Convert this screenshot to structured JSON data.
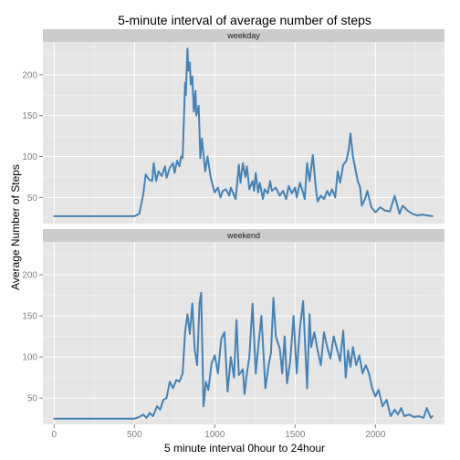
{
  "chart_data": {
    "type": "line",
    "title": "5-minute interval of average number of steps",
    "xlabel": "5 minute interval 0hour to 24hour",
    "ylabel": "Average Number of Steps",
    "xlim": [
      -70,
      2430
    ],
    "ylim": [
      18,
      240
    ],
    "x_ticks": [
      0,
      500,
      1000,
      1500,
      2000
    ],
    "y_ticks": [
      50,
      100,
      150,
      200
    ],
    "grid": true,
    "line_color": "#4682b4",
    "panels": [
      {
        "name": "weekday",
        "series": [
          {
            "x": [
              0,
              100,
              200,
              300,
              400,
              500,
              530,
              555,
              570,
              590,
              610,
              620,
              635,
              650,
              670,
              690,
              700,
              720,
              740,
              750,
              765,
              780,
              790,
              800,
              815,
              820,
              830,
              835,
              845,
              850,
              860,
              870,
              880,
              885,
              900,
              910,
              920,
              940,
              955,
              975,
              1000,
              1020,
              1035,
              1050,
              1070,
              1090,
              1100,
              1130,
              1150,
              1160,
              1175,
              1190,
              1200,
              1215,
              1235,
              1245,
              1255,
              1270,
              1280,
              1300,
              1310,
              1330,
              1345,
              1355,
              1380,
              1405,
              1425,
              1445,
              1460,
              1480,
              1500,
              1510,
              1530,
              1550,
              1560,
              1575,
              1590,
              1610,
              1630,
              1640,
              1660,
              1680,
              1700,
              1715,
              1730,
              1750,
              1765,
              1780,
              1800,
              1820,
              1835,
              1845,
              1860,
              1875,
              1890,
              1905,
              1915,
              1935,
              1950,
              1975,
              2000,
              2030,
              2060,
              2090,
              2120,
              2150,
              2170,
              2200,
              2230,
              2260,
              2290,
              2320,
              2355
            ],
            "y": [
              27,
              27,
              27,
              27,
              27,
              27,
              30,
              54,
              78,
              72,
              70,
              92,
              70,
              82,
              76,
              88,
              74,
              86,
              92,
              80,
              95,
              88,
              100,
              98,
              190,
              175,
              232,
              205,
              215,
              188,
              198,
              155,
              180,
              150,
              162,
              98,
              122,
              82,
              100,
              74,
              56,
              62,
              50,
              58,
              60,
              52,
              62,
              48,
              90,
              68,
              92,
              75,
              88,
              60,
              70,
              58,
              80,
              56,
              68,
              48,
              60,
              55,
              70,
              58,
              62,
              52,
              58,
              48,
              64,
              55,
              62,
              50,
              68,
              56,
              48,
              92,
              70,
              102,
              60,
              45,
              52,
              48,
              58,
              52,
              60,
              50,
              82,
              68,
              90,
              95,
              110,
              128,
              100,
              85,
              70,
              62,
              40,
              48,
              58,
              38,
              32,
              38,
              34,
              33,
              52,
              30,
              40,
              34,
              30,
              28,
              29,
              28,
              27
            ]
          }
        ]
      },
      {
        "name": "weekend",
        "series": [
          {
            "x": [
              0,
              100,
              200,
              300,
              400,
              500,
              530,
              555,
              575,
              595,
              615,
              640,
              660,
              680,
              700,
              720,
              740,
              760,
              780,
              800,
              815,
              830,
              845,
              860,
              875,
              890,
              905,
              915,
              930,
              945,
              960,
              980,
              1000,
              1020,
              1040,
              1060,
              1080,
              1100,
              1120,
              1135,
              1150,
              1175,
              1185,
              1200,
              1215,
              1235,
              1255,
              1270,
              1290,
              1315,
              1335,
              1350,
              1365,
              1380,
              1405,
              1420,
              1435,
              1450,
              1470,
              1490,
              1510,
              1530,
              1550,
              1575,
              1590,
              1600,
              1620,
              1640,
              1660,
              1680,
              1700,
              1720,
              1740,
              1760,
              1780,
              1800,
              1815,
              1830,
              1845,
              1860,
              1880,
              1900,
              1920,
              1940,
              1960,
              1980,
              2000,
              2020,
              2045,
              2070,
              2095,
              2120,
              2140,
              2160,
              2180,
              2210,
              2240,
              2270,
              2300,
              2320,
              2345,
              2355
            ],
            "y": [
              25,
              25,
              25,
              25,
              25,
              25,
              27,
              30,
              26,
              32,
              28,
              40,
              36,
              48,
              50,
              70,
              62,
              72,
              70,
              80,
              130,
              152,
              128,
              165,
              110,
              90,
              165,
              178,
              40,
              70,
              60,
              92,
              102,
              80,
              122,
              130,
              58,
              100,
              75,
              145,
              78,
              85,
              55,
              80,
              100,
              165,
              80,
              110,
              150,
              62,
              90,
              105,
              172,
              125,
              110,
              80,
              125,
              68,
              95,
              150,
              80,
              135,
              168,
              62,
              152,
              112,
              130,
              108,
              90,
              130,
              112,
              98,
              125,
              110,
              95,
              132,
              75,
              108,
              88,
              112,
              90,
              102,
              80,
              90,
              80,
              62,
              52,
              60,
              40,
              48,
              28,
              36,
              30,
              38,
              28,
              30,
              27,
              28,
              26,
              38,
              26,
              28
            ]
          }
        ]
      }
    ]
  }
}
